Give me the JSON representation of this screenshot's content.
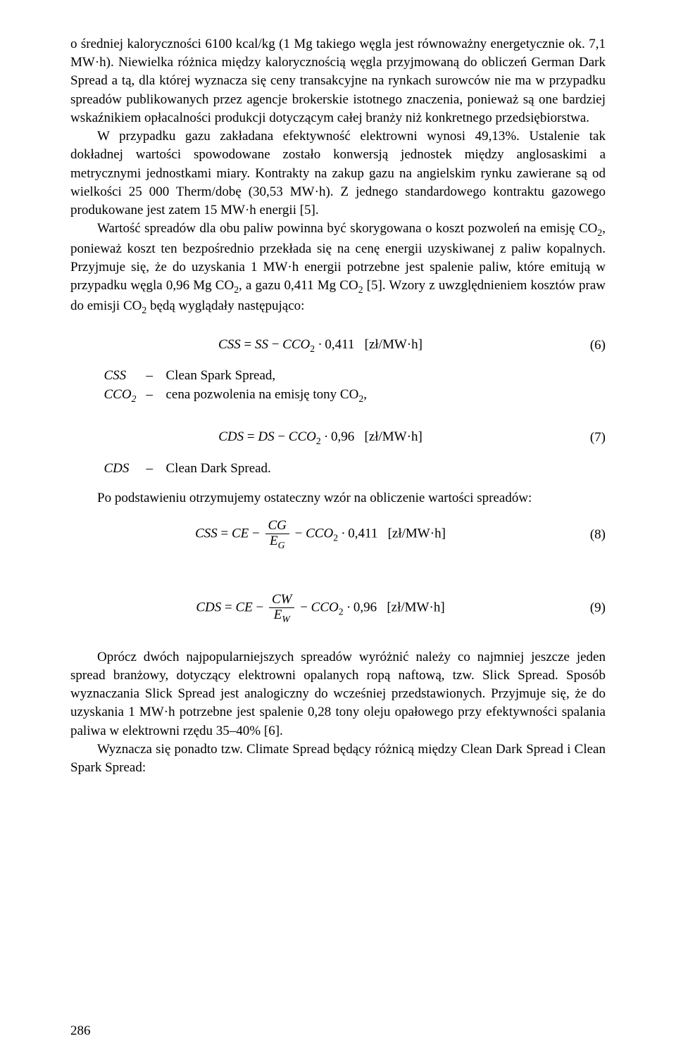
{
  "colors": {
    "text": "#000000",
    "background": "#ffffff"
  },
  "typography": {
    "body_font": "Times New Roman",
    "body_size_pt": 12,
    "line_height": 1.38,
    "justify": true
  },
  "paragraphs": {
    "p1": "o średniej kaloryczności 6100 kcal/kg (1 Mg takiego węgla jest równoważny energetycznie ok. 7,1 MW·h). Niewielka różnica między kalorycznością węgla przyjmowaną do obliczeń German Dark Spread a tą, dla której wyznacza się ceny transakcyjne na rynkach surowców nie ma w przypadku spreadów publikowanych przez agencje brokerskie istotnego znaczenia, ponieważ są one bardziej wskaźnikiem opłacalności produkcji dotyczącym całej branży niż konkretnego przedsiębiorstwa.",
    "p2": "W przypadku gazu zakładana efektywność elektrowni wynosi 49,13%. Ustalenie tak dokładnej wartości spowodowane zostało konwersją jednostek między anglosaskimi a metrycznymi jednostkami miary. Kontrakty na zakup gazu na angielskim rynku zawierane są od wielkości 25 000 Therm/dobę (30,53 MW·h). Z jednego standardowego kontraktu gazowego produkowane jest zatem 15 MW·h energii [5].",
    "p3a": "Wartość spreadów dla obu paliw powinna być skorygowana o koszt pozwoleń na emisję CO",
    "p3b": ", ponieważ koszt ten bezpośrednio przekłada się na cenę energii uzyskiwanej z paliw kopalnych. Przyjmuje się, że do uzyskania 1 MW·h energii potrzebne jest spalenie paliw, które emitują w przypadku węgla 0,96 Mg CO",
    "p3c": ", a gazu 0,411 Mg CO",
    "p3d": " [5]. Wzory z uwzględnieniem kosztów praw do emisji CO",
    "p3e": " będą wyglądały następująco:",
    "p4": "Po podstawieniu otrzymujemy ostateczny wzór na obliczenie wartości spreadów:",
    "p5": "Oprócz dwóch najpopularniejszych spreadów wyróżnić należy co najmniej jeszcze jeden spread branżowy, dotyczący elektrowni opalanych ropą naftową, tzw. Slick Spread. Sposób wyznaczania Slick Spread jest analogiczny do wcześniej przedstawionych. Przyjmuje się, że do uzyskania 1 MW·h potrzebne jest spalenie 0,28 tony oleju opałowego przy efektywności spalania paliwa w elektrowni rzędu 35–40% [6].",
    "p6": "Wyznacza się ponadto tzw. Climate Spread będący różnicą między Clean Dark Spread i Clean Spark Spread:"
  },
  "equations": {
    "eq6": {
      "unit": "[zł/MW·h]",
      "num": "(6)"
    },
    "eq7": {
      "unit": "[zł/MW·h]",
      "num": "(7)"
    },
    "eq8": {
      "unit": "[zł/MW·h]",
      "num": "(8)"
    },
    "eq9": {
      "unit": "[zł/MW·h]",
      "num": "(9)"
    }
  },
  "defs": {
    "css_sym": "CSS",
    "css_txt": "Clean Spark Spread,",
    "cco2_sym": "CCO",
    "cco2_txt": "cena pozwolenia na emisję tony CO",
    "cco2_end": ",",
    "cds_sym": "CDS",
    "cds_txt": "Clean Dark Spread.",
    "dash": "–"
  },
  "page_number": "286"
}
